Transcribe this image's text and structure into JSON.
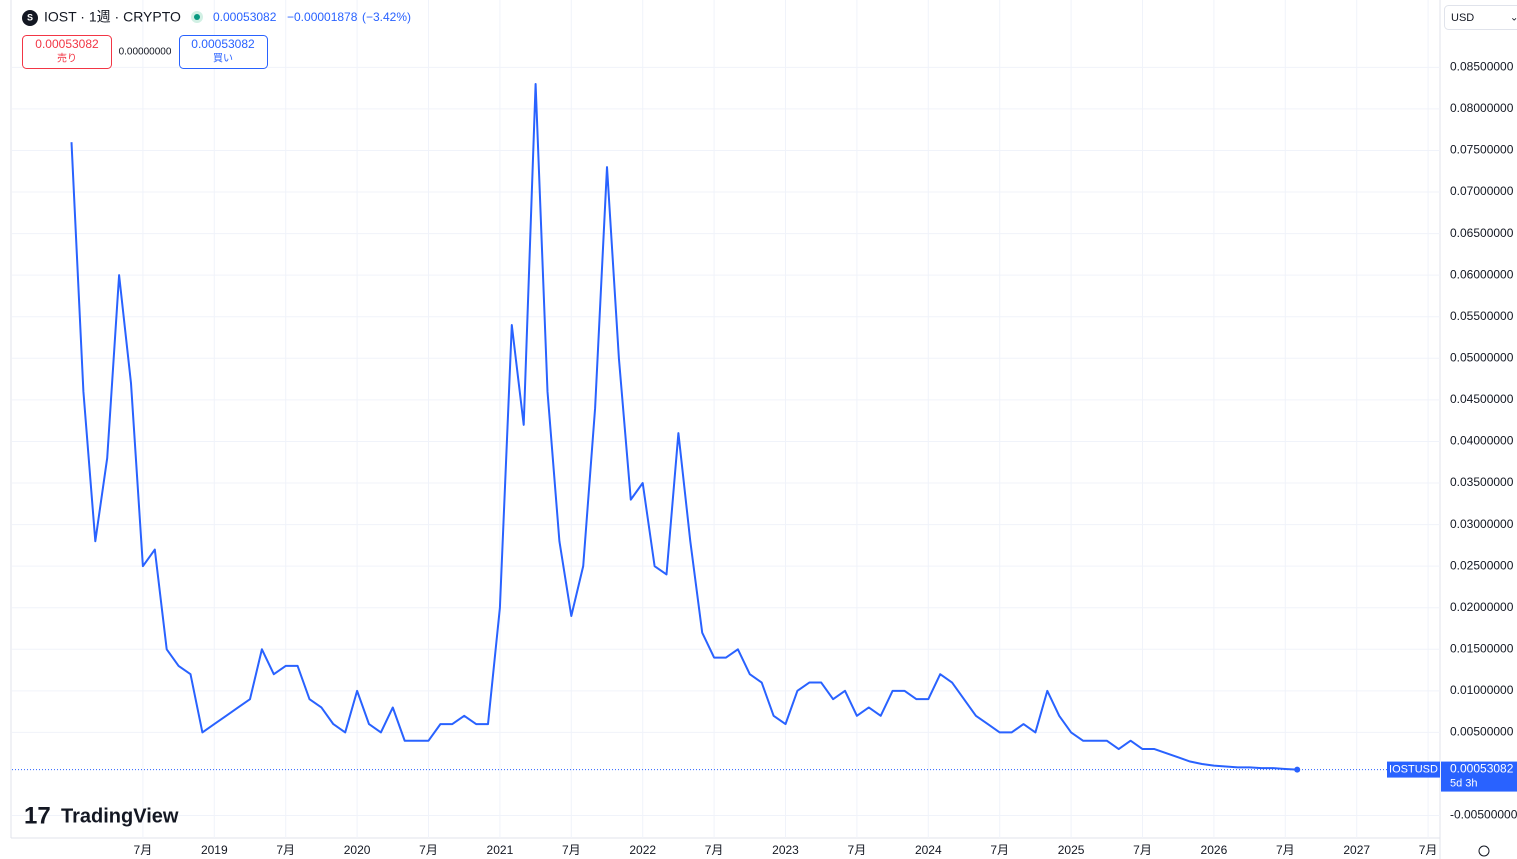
{
  "chart_data": {
    "type": "line",
    "title": "IOST · 1週 · CRYPTO",
    "header_price": "0.00053082",
    "header_change": "−0.00001878",
    "header_change_pct": "(−3.42%)",
    "sell_price": "0.00053082",
    "sell_label": "売り",
    "spread": "0.00000000",
    "buy_price": "0.00053082",
    "buy_label": "買い",
    "currency": "USD",
    "price_tag_symbol": "IOSTUSD",
    "price_tag_value": "0.00053082",
    "price_tag_countdown": "5d 3h",
    "brand": "TradingView",
    "x": [
      "2018-01",
      "2018-02",
      "2018-03",
      "2018-04",
      "2018-05",
      "2018-06",
      "2018-07",
      "2018-08",
      "2018-09",
      "2018-10",
      "2018-11",
      "2018-12",
      "2019-01",
      "2019-02",
      "2019-03",
      "2019-04",
      "2019-05",
      "2019-06",
      "2019-07",
      "2019-08",
      "2019-09",
      "2019-10",
      "2019-11",
      "2019-12",
      "2020-01",
      "2020-02",
      "2020-03",
      "2020-04",
      "2020-05",
      "2020-06",
      "2020-07",
      "2020-08",
      "2020-09",
      "2020-10",
      "2020-11",
      "2020-12",
      "2021-01",
      "2021-02",
      "2021-03",
      "2021-04",
      "2021-05",
      "2021-06",
      "2021-07",
      "2021-08",
      "2021-09",
      "2021-10",
      "2021-11",
      "2021-12",
      "2022-01",
      "2022-02",
      "2022-03",
      "2022-04",
      "2022-05",
      "2022-06",
      "2022-07",
      "2022-08",
      "2022-09",
      "2022-10",
      "2022-11",
      "2022-12",
      "2023-01",
      "2023-02",
      "2023-03",
      "2023-04",
      "2023-05",
      "2023-06",
      "2023-07",
      "2023-08",
      "2023-09",
      "2023-10",
      "2023-11",
      "2023-12",
      "2024-01",
      "2024-02",
      "2024-03",
      "2024-04",
      "2024-05",
      "2024-06",
      "2024-07",
      "2024-08",
      "2024-09",
      "2024-10",
      "2024-11",
      "2024-12",
      "2025-01",
      "2025-02",
      "2025-03",
      "2025-04",
      "2025-05",
      "2025-06",
      "2025-07",
      "2025-08",
      "2025-09",
      "2025-10",
      "2025-11",
      "2025-12",
      "2026-01",
      "2026-02",
      "2026-03",
      "2026-04",
      "2026-05",
      "2026-06",
      "2026-07",
      "2026-08"
    ],
    "series": [
      {
        "name": "IOSTUSD",
        "color": "#2962ff",
        "values": [
          0.076,
          0.046,
          0.028,
          0.038,
          0.06,
          0.047,
          0.025,
          0.027,
          0.015,
          0.013,
          0.012,
          0.005,
          0.006,
          0.007,
          0.008,
          0.009,
          0.015,
          0.012,
          0.013,
          0.013,
          0.009,
          0.008,
          0.006,
          0.005,
          0.01,
          0.006,
          0.005,
          0.008,
          0.004,
          0.004,
          0.004,
          0.006,
          0.006,
          0.007,
          0.006,
          0.006,
          0.02,
          0.054,
          0.042,
          0.083,
          0.046,
          0.028,
          0.019,
          0.025,
          0.044,
          0.073,
          0.05,
          0.033,
          0.035,
          0.025,
          0.024,
          0.041,
          0.028,
          0.017,
          0.014,
          0.014,
          0.015,
          0.012,
          0.011,
          0.007,
          0.006,
          0.01,
          0.011,
          0.011,
          0.009,
          0.01,
          0.007,
          0.008,
          0.007,
          0.01,
          0.01,
          0.009,
          0.009,
          0.012,
          0.011,
          0.009,
          0.007,
          0.006,
          0.005,
          0.005,
          0.006,
          0.005,
          0.01,
          0.007,
          0.005,
          0.004,
          0.004,
          0.004,
          0.003,
          0.004,
          0.003,
          0.003,
          0.0025,
          0.002,
          0.0015,
          0.0012,
          0.001,
          0.0009,
          0.0008,
          0.0008,
          0.0007,
          0.0007,
          0.0006,
          0.00053082
        ]
      }
    ],
    "xlim": [
      "2017-08",
      "2027-08"
    ],
    "xticks": [
      {
        "value": "2018-07",
        "label": "7月"
      },
      {
        "value": "2019-01",
        "label": "2019"
      },
      {
        "value": "2019-07",
        "label": "7月"
      },
      {
        "value": "2020-01",
        "label": "2020"
      },
      {
        "value": "2020-07",
        "label": "7月"
      },
      {
        "value": "2021-01",
        "label": "2021"
      },
      {
        "value": "2021-07",
        "label": "7月"
      },
      {
        "value": "2022-01",
        "label": "2022"
      },
      {
        "value": "2022-07",
        "label": "7月"
      },
      {
        "value": "2023-01",
        "label": "2023"
      },
      {
        "value": "2023-07",
        "label": "7月"
      },
      {
        "value": "2024-01",
        "label": "2024"
      },
      {
        "value": "2024-07",
        "label": "7月"
      },
      {
        "value": "2025-01",
        "label": "2025"
      },
      {
        "value": "2025-07",
        "label": "7月"
      },
      {
        "value": "2026-01",
        "label": "2026"
      },
      {
        "value": "2026-07",
        "label": "7月"
      },
      {
        "value": "2027-01",
        "label": "2027"
      },
      {
        "value": "2027-07",
        "label": "7月"
      }
    ],
    "ylim": [
      -0.0077,
      0.0931
    ],
    "yticks": [
      {
        "value": -0.005,
        "label": "-0.00500000"
      },
      {
        "value": 0.005,
        "label": "0.00500000"
      },
      {
        "value": 0.01,
        "label": "0.01000000"
      },
      {
        "value": 0.015,
        "label": "0.01500000"
      },
      {
        "value": 0.02,
        "label": "0.02000000"
      },
      {
        "value": 0.025,
        "label": "0.02500000"
      },
      {
        "value": 0.03,
        "label": "0.03000000"
      },
      {
        "value": 0.035,
        "label": "0.03500000"
      },
      {
        "value": 0.04,
        "label": "0.04000000"
      },
      {
        "value": 0.045,
        "label": "0.04500000"
      },
      {
        "value": 0.05,
        "label": "0.05000000"
      },
      {
        "value": 0.055,
        "label": "0.05500000"
      },
      {
        "value": 0.06,
        "label": "0.06000000"
      },
      {
        "value": 0.065,
        "label": "0.06500000"
      },
      {
        "value": 0.07,
        "label": "0.07000000"
      },
      {
        "value": 0.075,
        "label": "0.07500000"
      },
      {
        "value": 0.08,
        "label": "0.08000000"
      },
      {
        "value": 0.085,
        "label": "0.08500000"
      }
    ],
    "grid": true
  }
}
